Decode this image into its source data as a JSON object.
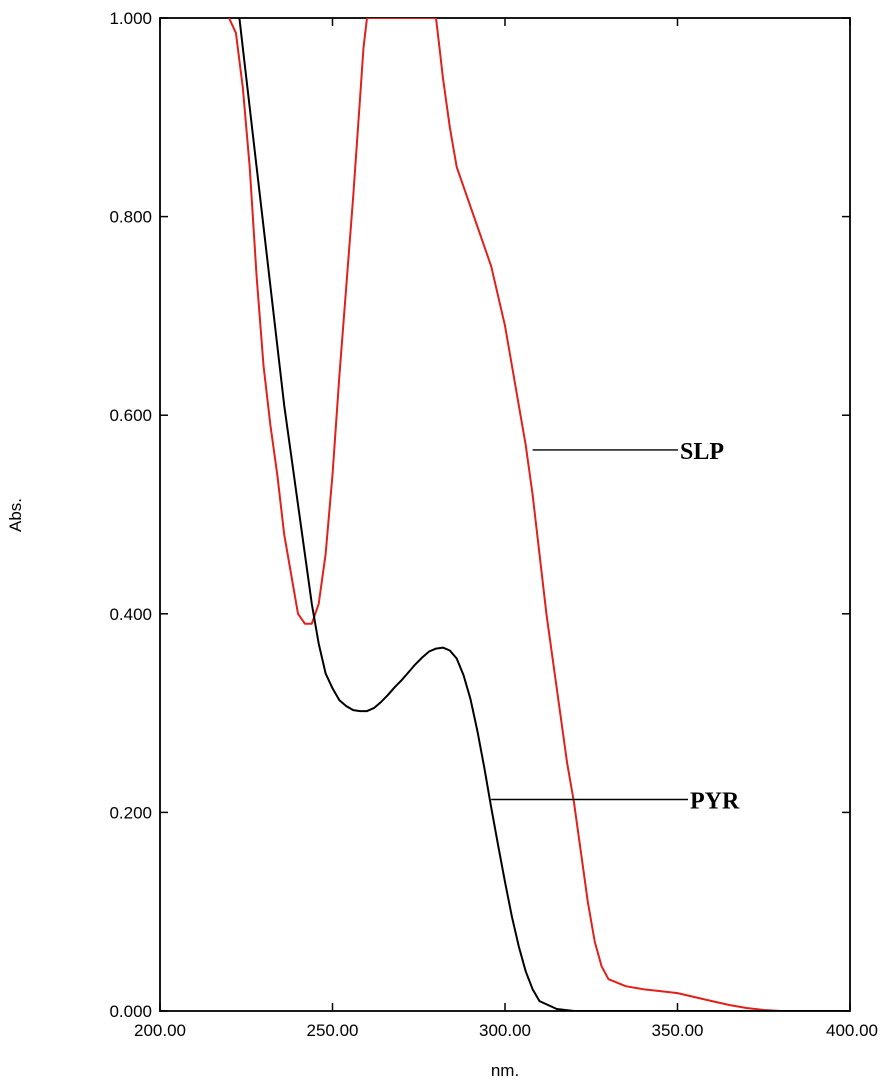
{
  "chart_data": {
    "type": "line",
    "title": "",
    "xlabel": "nm.",
    "ylabel": "Abs.",
    "xlim": [
      200,
      400
    ],
    "ylim": [
      0,
      1
    ],
    "grid": false,
    "x_ticks": [
      "200.00",
      "250.00",
      "300.00",
      "350.00",
      "400.00"
    ],
    "y_ticks": [
      "0.000",
      "0.200",
      "0.400",
      "0.600",
      "0.800",
      "1.000"
    ],
    "series": [
      {
        "name": "SLP",
        "color": "#e0201b",
        "x": [
          220.0,
          222.0,
          224.0,
          226.0,
          228.0,
          230.0,
          232.0,
          234.0,
          236.0,
          238.0,
          240.0,
          242.0,
          244.0,
          246.0,
          248.0,
          250.0,
          252.0,
          254.0,
          256.0,
          258.0,
          259.0,
          260.0,
          280.0,
          281.0,
          282.0,
          284.0,
          286.0,
          288.0,
          290.0,
          292.0,
          294.0,
          296.0,
          298.0,
          300.0,
          302.0,
          304.0,
          306.0,
          308.0,
          310.0,
          312.0,
          314.0,
          316.0,
          318.0,
          320.0,
          322.0,
          324.0,
          326.0,
          328.0,
          330.0,
          335.0,
          340.0,
          345.0,
          350.0,
          355.0,
          360.0,
          365.0,
          370.0,
          375.0,
          380.0,
          390.0,
          400.0
        ],
        "y": [
          1.0,
          0.985,
          0.93,
          0.85,
          0.74,
          0.65,
          0.59,
          0.54,
          0.48,
          0.44,
          0.4,
          0.39,
          0.39,
          0.41,
          0.46,
          0.54,
          0.64,
          0.73,
          0.82,
          0.92,
          0.97,
          1.0,
          1.0,
          0.97,
          0.94,
          0.89,
          0.85,
          0.83,
          0.81,
          0.79,
          0.77,
          0.75,
          0.72,
          0.69,
          0.65,
          0.61,
          0.57,
          0.52,
          0.46,
          0.4,
          0.35,
          0.3,
          0.25,
          0.21,
          0.16,
          0.11,
          0.07,
          0.045,
          0.032,
          0.025,
          0.022,
          0.02,
          0.018,
          0.014,
          0.01,
          0.006,
          0.003,
          0.001,
          0.0,
          0.0,
          0.0
        ]
      },
      {
        "name": "PYR",
        "color": "#000000",
        "x": [
          223.0,
          224.0,
          226.0,
          228.0,
          230.0,
          232.0,
          234.0,
          236.0,
          238.0,
          240.0,
          242.0,
          244.0,
          246.0,
          248.0,
          250.0,
          252.0,
          254.0,
          256.0,
          258.0,
          260.0,
          262.0,
          264.0,
          266.0,
          268.0,
          270.0,
          272.0,
          274.0,
          276.0,
          278.0,
          280.0,
          282.0,
          284.0,
          286.0,
          288.0,
          290.0,
          292.0,
          294.0,
          296.0,
          298.0,
          300.0,
          302.0,
          304.0,
          306.0,
          308.0,
          310.0,
          315.0,
          320.0,
          330.0,
          340.0,
          400.0
        ],
        "y": [
          1.0,
          0.97,
          0.91,
          0.85,
          0.79,
          0.73,
          0.67,
          0.61,
          0.56,
          0.51,
          0.46,
          0.41,
          0.37,
          0.34,
          0.325,
          0.313,
          0.307,
          0.303,
          0.302,
          0.302,
          0.305,
          0.311,
          0.318,
          0.326,
          0.333,
          0.341,
          0.349,
          0.356,
          0.362,
          0.365,
          0.366,
          0.363,
          0.355,
          0.338,
          0.314,
          0.282,
          0.245,
          0.205,
          0.167,
          0.13,
          0.095,
          0.065,
          0.04,
          0.022,
          0.01,
          0.002,
          0.0,
          0.0,
          0.0,
          0.0
        ]
      }
    ],
    "annotations": [
      {
        "text": "SLP",
        "series": "SLP",
        "x": 308,
        "y": 0.565
      },
      {
        "text": "PYR",
        "series": "PYR",
        "x": 296,
        "y": 0.213
      }
    ]
  }
}
